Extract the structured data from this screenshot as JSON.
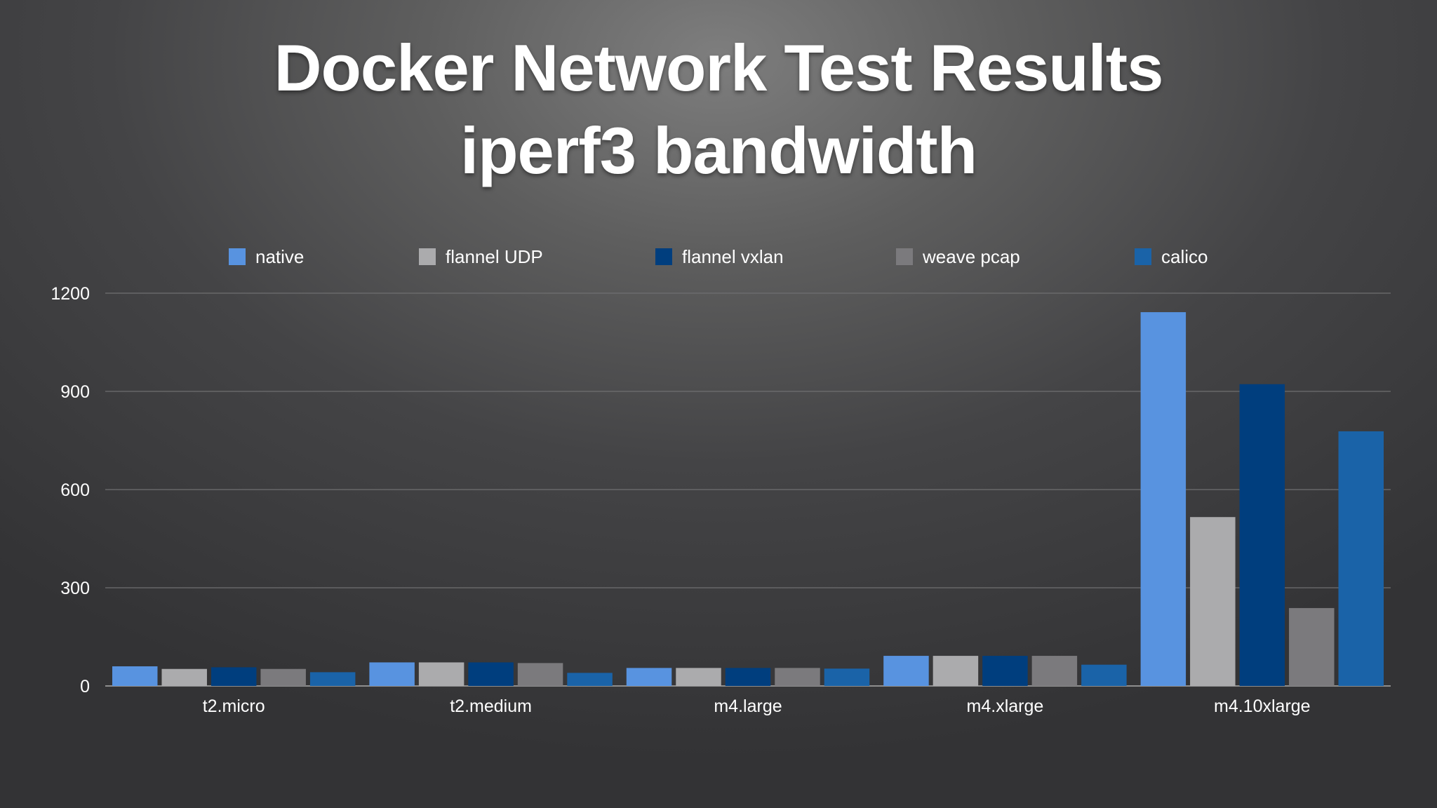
{
  "chart_data": {
    "type": "bar",
    "title": "Docker Network Test Results",
    "subtitle": "iperf3 bandwidth",
    "categories": [
      "t2.micro",
      "t2.medium",
      "m4.large",
      "m4.xlarge",
      "m4.10xlarge"
    ],
    "series": [
      {
        "name": "native",
        "color": "#5893e0",
        "values": [
          60,
          72,
          55,
          92,
          1142
        ]
      },
      {
        "name": "flannel UDP",
        "color": "#ababad",
        "values": [
          52,
          72,
          55,
          92,
          516
        ]
      },
      {
        "name": "flannel vxlan",
        "color": "#003e7e",
        "values": [
          57,
          72,
          55,
          92,
          922
        ]
      },
      {
        "name": "weave pcap",
        "color": "#7b7a7d",
        "values": [
          52,
          70,
          55,
          92,
          238
        ]
      },
      {
        "name": "calico",
        "color": "#1a63a8",
        "values": [
          42,
          40,
          53,
          65,
          778
        ]
      }
    ],
    "y_ticks": [
      "0",
      "300",
      "600",
      "900",
      "1200"
    ],
    "ylim": [
      0,
      1200
    ],
    "grid": true,
    "legend_position": "top"
  }
}
